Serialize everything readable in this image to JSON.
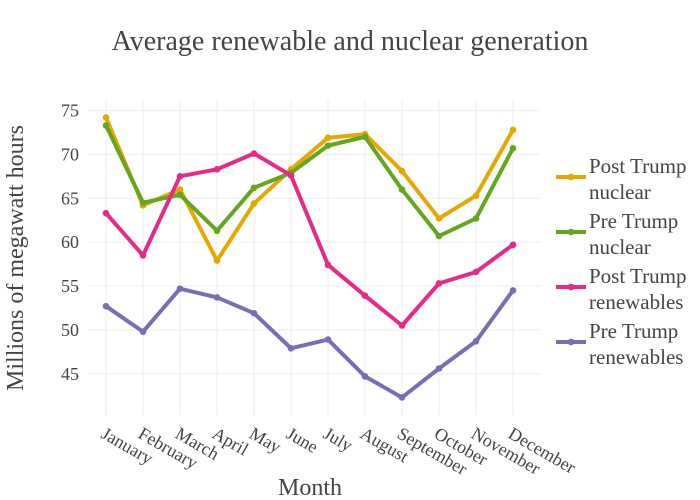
{
  "chart_data": {
    "type": "line",
    "title": "Average renewable and nuclear generation",
    "xlabel": "Month",
    "ylabel": "Millions of megawatt hours",
    "categories": [
      "January",
      "February",
      "March",
      "April",
      "May",
      "June",
      "July",
      "August",
      "September",
      "October",
      "November",
      "December"
    ],
    "yticks": [
      45,
      50,
      55,
      60,
      65,
      70,
      75
    ],
    "ylim": [
      40.3,
      76.2
    ],
    "grid": true,
    "legend_position": "right",
    "series": [
      {
        "name": "Post Trump nuclear",
        "legend_lines": [
          "Post Trump",
          "nuclear"
        ],
        "color": "#e6a800",
        "values": [
          74.2,
          64.2,
          66.0,
          57.9,
          64.4,
          68.3,
          71.9,
          72.3,
          68.1,
          62.7,
          65.3,
          72.8
        ]
      },
      {
        "name": "Pre Trump nuclear",
        "legend_lines": [
          "Pre Trump",
          "nuclear"
        ],
        "color": "#66a61e",
        "values": [
          73.3,
          64.5,
          65.4,
          61.3,
          66.2,
          67.9,
          71.0,
          72.0,
          66.0,
          60.7,
          62.7,
          70.7
        ]
      },
      {
        "name": "Post Trump renewables",
        "legend_lines": [
          "Post Trump",
          "renewables"
        ],
        "color": "#e7298a",
        "values": [
          63.3,
          58.5,
          67.5,
          68.3,
          70.1,
          67.6,
          57.4,
          53.9,
          50.5,
          55.3,
          56.6,
          59.7
        ]
      },
      {
        "name": "Pre Trump renewables",
        "legend_lines": [
          "Pre Trump",
          "renewables"
        ],
        "color": "#7570b3",
        "values": [
          52.7,
          49.8,
          54.7,
          53.7,
          51.9,
          47.9,
          48.9,
          44.7,
          42.3,
          45.6,
          48.7,
          54.5
        ]
      }
    ]
  }
}
